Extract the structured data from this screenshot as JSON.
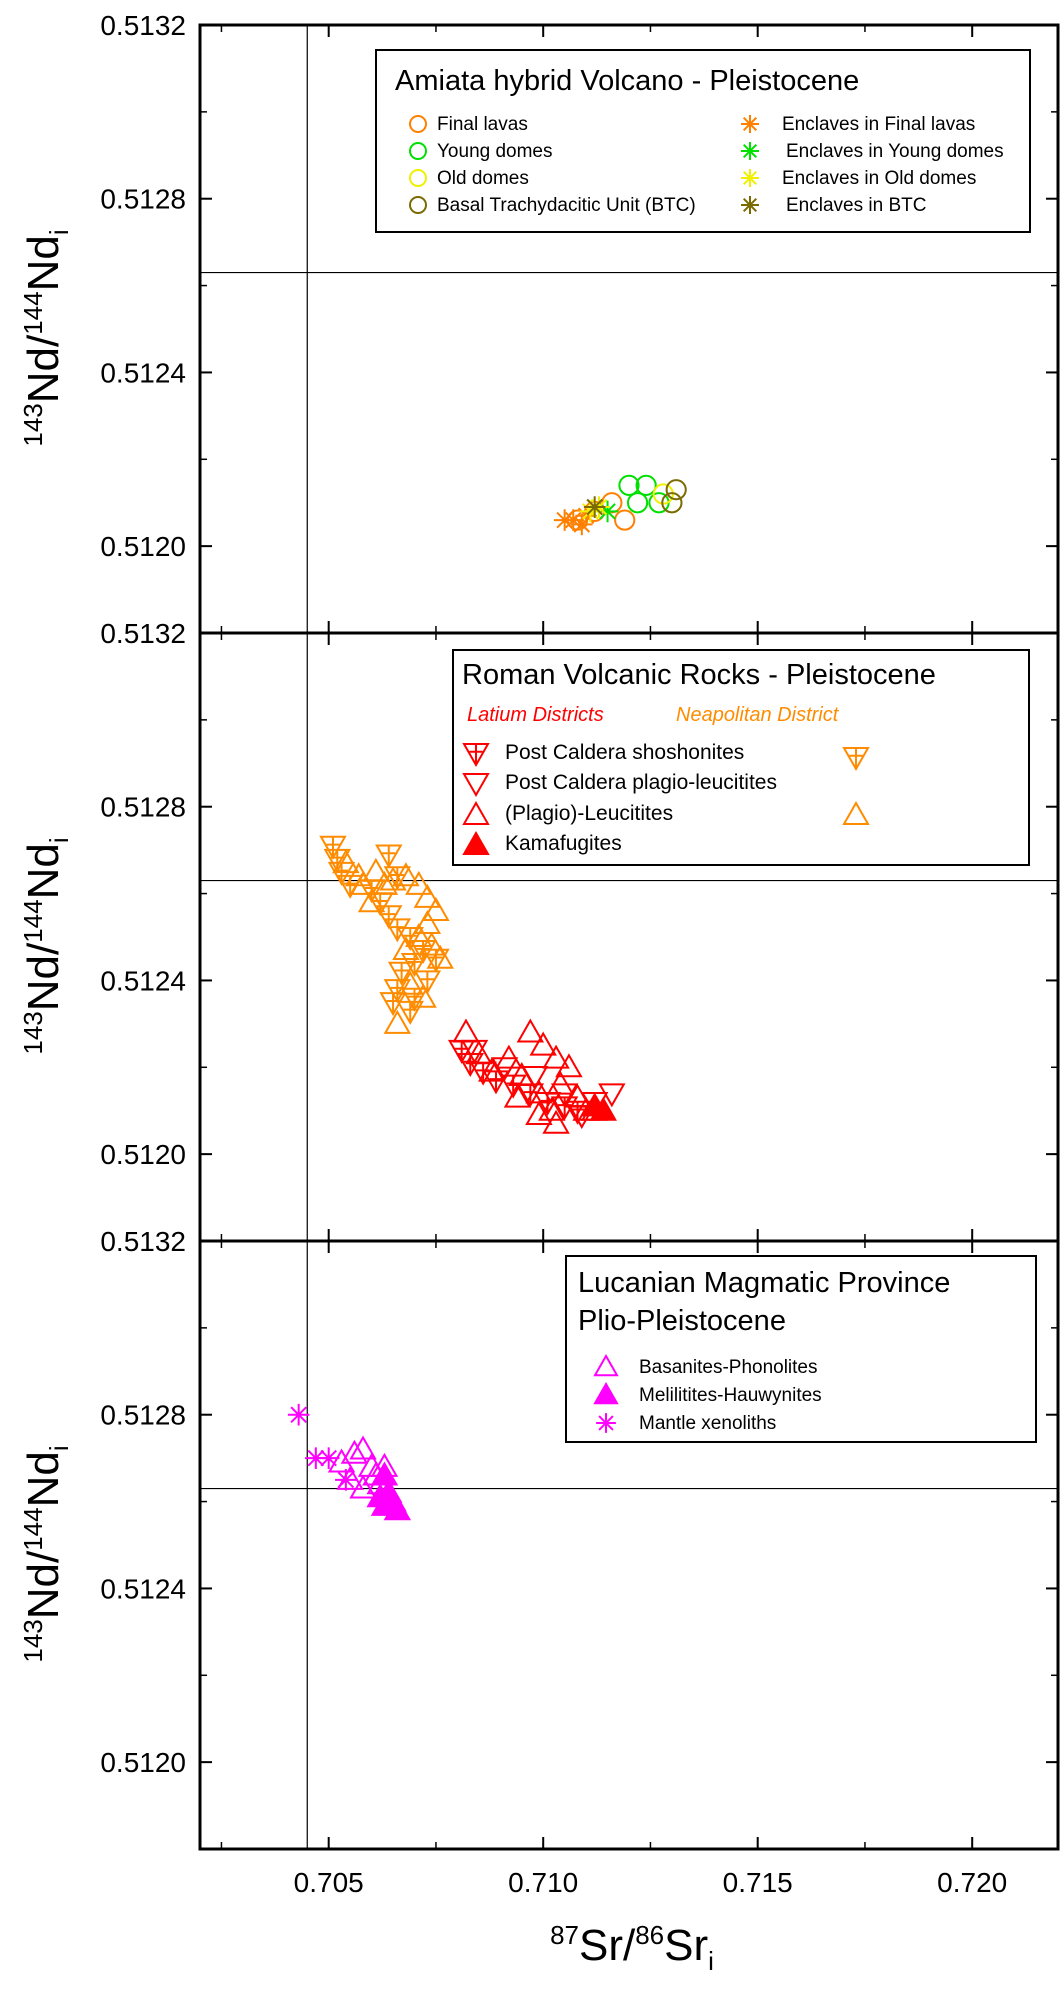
{
  "axes": {
    "x_label_main": "Sr/",
    "x_label_sup1": "87",
    "x_label_sup2": "86",
    "x_label_tail": "Sr",
    "x_label_sub": "i",
    "y_label_sup1": "143",
    "y_label_mid": "Nd/",
    "y_label_sup2": "144",
    "y_label_tail": "Nd",
    "y_label_sub": "i",
    "x_ticks": [
      "0.705",
      "0.710",
      "0.715",
      "0.720"
    ],
    "y_ticks": [
      "0.5120",
      "0.5124",
      "0.5128",
      "0.5132"
    ]
  },
  "legends": [
    {
      "title": "Amiata hybrid Volcano - Pleistocene",
      "left": [
        "Final lavas",
        "Young domes",
        "Old domes",
        "Basal Trachydacitic Unit (BTC)"
      ],
      "right": [
        "Enclaves in Final lavas",
        "Enclaves in Young domes",
        "Enclaves in Old domes",
        "Enclaves in BTC"
      ]
    },
    {
      "title": "Roman Volcanic Rocks - Pleistocene",
      "sub_latium": "Latium Districts",
      "sub_neapolitan": "Neapolitan District",
      "items": [
        "Post Caldera shoshonites",
        "Post Caldera plagio-leucitites",
        "(Plagio)-Leucitites",
        "Kamafugites"
      ]
    },
    {
      "title_line1": "Lucanian Magmatic Province",
      "title_line2": "Plio-Pleistocene",
      "items": [
        "Basanites-Phonolites",
        "Melilitites-Hauwynites",
        "Mantle xenoliths"
      ]
    }
  ],
  "colors": {
    "final_lavas": "#ff8000",
    "young_domes": "#00e000",
    "old_domes": "#f0f000",
    "btc": "#7a6a00",
    "latium": "#ff0000",
    "neapolitan": "#ff8c00",
    "lucanian": "#ff00ff"
  },
  "chart_data": [
    {
      "type": "scatter",
      "title": "Amiata hybrid Volcano - Pleistocene",
      "xlim": [
        0.702,
        0.722
      ],
      "ylim": [
        0.5118,
        0.5132
      ],
      "reference_lines": {
        "x": 0.7045,
        "y": 0.51263
      },
      "series": [
        {
          "name": "Final lavas",
          "marker": "circle-open",
          "color": "#ff8000",
          "points": [
            [
              0.7108,
              0.51206
            ],
            [
              0.7112,
              0.51208
            ],
            [
              0.7116,
              0.5121
            ],
            [
              0.7119,
              0.51206
            ]
          ]
        },
        {
          "name": "Young domes",
          "marker": "circle-open",
          "color": "#00e000",
          "points": [
            [
              0.712,
              0.51214
            ],
            [
              0.7124,
              0.51214
            ],
            [
              0.7122,
              0.5121
            ],
            [
              0.7127,
              0.5121
            ]
          ]
        },
        {
          "name": "Old domes",
          "marker": "circle-open",
          "color": "#f0f000",
          "points": [
            [
              0.7128,
              0.51212
            ]
          ]
        },
        {
          "name": "Basal Trachydacitic Unit (BTC)",
          "marker": "circle-open",
          "color": "#7a6a00",
          "points": [
            [
              0.7131,
              0.51213
            ],
            [
              0.713,
              0.5121
            ]
          ]
        },
        {
          "name": "Enclaves in Final lavas",
          "marker": "asterisk",
          "color": "#ff8000",
          "points": [
            [
              0.7107,
              0.51206
            ],
            [
              0.7109,
              0.51205
            ],
            [
              0.711,
              0.51207
            ],
            [
              0.7105,
              0.51206
            ]
          ]
        },
        {
          "name": "Enclaves in Young domes",
          "marker": "asterisk",
          "color": "#00e000",
          "points": [
            [
              0.7115,
              0.51208
            ]
          ]
        },
        {
          "name": "Enclaves in Old domes",
          "marker": "asterisk",
          "color": "#f0f000",
          "points": [
            [
              0.7111,
              0.51208
            ],
            [
              0.7113,
              0.51209
            ]
          ]
        },
        {
          "name": "Enclaves in BTC",
          "marker": "asterisk",
          "color": "#7a6a00",
          "points": [
            [
              0.7112,
              0.51209
            ]
          ]
        }
      ]
    },
    {
      "type": "scatter",
      "title": "Roman Volcanic Rocks - Pleistocene",
      "xlim": [
        0.702,
        0.722
      ],
      "ylim": [
        0.5118,
        0.5132
      ],
      "reference_lines": {
        "x": 0.7045,
        "y": 0.51263
      },
      "series": [
        {
          "name": "Post Caldera shoshonites",
          "group": "Neapolitan District",
          "marker": "triangle-down-cross",
          "color": "#ff8c00",
          "points": [
            [
              0.7051,
              0.51271
            ],
            [
              0.7052,
              0.51268
            ],
            [
              0.7053,
              0.51265
            ],
            [
              0.7055,
              0.51262
            ],
            [
              0.706,
              0.51261
            ],
            [
              0.7062,
              0.51258
            ],
            [
              0.7064,
              0.51255
            ],
            [
              0.7066,
              0.51252
            ],
            [
              0.7069,
              0.5125
            ],
            [
              0.7072,
              0.51247
            ],
            [
              0.707,
              0.51244
            ],
            [
              0.7067,
              0.51242
            ],
            [
              0.7066,
              0.51238
            ],
            [
              0.7065,
              0.51235
            ],
            [
              0.7069,
              0.51233
            ],
            [
              0.7073,
              0.5124
            ],
            [
              0.7075,
              0.51245
            ],
            [
              0.7064,
              0.51269
            ],
            [
              0.7066,
              0.51264
            ],
            [
              0.707,
              0.51236
            ]
          ]
        },
        {
          "name": "(Plagio)-Leucitites",
          "group": "Neapolitan District",
          "marker": "triangle-up",
          "color": "#ff8c00",
          "points": [
            [
              0.7054,
              0.51267
            ],
            [
              0.7057,
              0.51264
            ],
            [
              0.7061,
              0.51265
            ],
            [
              0.7063,
              0.51262
            ],
            [
              0.7065,
              0.51263
            ],
            [
              0.7068,
              0.51264
            ],
            [
              0.7071,
              0.51262
            ],
            [
              0.7073,
              0.51259
            ],
            [
              0.7075,
              0.51256
            ],
            [
              0.7073,
              0.51253
            ],
            [
              0.7071,
              0.5125
            ],
            [
              0.7074,
              0.51248
            ],
            [
              0.7076,
              0.51245
            ],
            [
              0.7068,
              0.51247
            ],
            [
              0.7069,
              0.51239
            ],
            [
              0.7072,
              0.51236
            ],
            [
              0.7066,
              0.5123
            ],
            [
              0.706,
              0.51258
            ],
            [
              0.7058,
              0.51262
            ]
          ]
        },
        {
          "name": "Post Caldera shoshonites",
          "group": "Latium Districts",
          "marker": "triangle-down-cross",
          "color": "#ff0000",
          "points": [
            [
              0.7081,
              0.51224
            ],
            [
              0.7083,
              0.51221
            ],
            [
              0.7086,
              0.51219
            ],
            [
              0.7089,
              0.51217
            ],
            [
              0.7093,
              0.51216
            ],
            [
              0.7097,
              0.51214
            ],
            [
              0.7101,
              0.51212
            ],
            [
              0.7105,
              0.51211
            ],
            [
              0.7108,
              0.5121
            ]
          ]
        },
        {
          "name": "Post Caldera plagio-leucitites",
          "group": "Latium Districts",
          "marker": "triangle-down",
          "color": "#ff0000",
          "points": [
            [
              0.7084,
              0.51224
            ],
            [
              0.7091,
              0.5122
            ],
            [
              0.7098,
              0.51218
            ],
            [
              0.7105,
              0.51214
            ],
            [
              0.7112,
              0.51212
            ],
            [
              0.7116,
              0.51214
            ],
            [
              0.7109,
              0.51209
            ]
          ]
        },
        {
          "name": "(Plagio)-Leucitites",
          "group": "Latium Districts",
          "marker": "triangle-up",
          "color": "#ff0000",
          "points": [
            [
              0.7082,
              0.51228
            ],
            [
              0.7085,
              0.51223
            ],
            [
              0.7088,
              0.51219
            ],
            [
              0.7092,
              0.51222
            ],
            [
              0.7095,
              0.51218
            ],
            [
              0.7097,
              0.51228
            ],
            [
              0.71,
              0.51225
            ],
            [
              0.7103,
              0.51222
            ],
            [
              0.7099,
              0.51214
            ],
            [
              0.7102,
              0.5121
            ],
            [
              0.7104,
              0.51216
            ],
            [
              0.7106,
              0.5122
            ],
            [
              0.7108,
              0.51213
            ],
            [
              0.711,
              0.5121
            ],
            [
              0.7103,
              0.51207
            ],
            [
              0.7099,
              0.51209
            ],
            [
              0.7112,
              0.5121
            ],
            [
              0.7094,
              0.51213
            ]
          ]
        },
        {
          "name": "Kamafugites",
          "group": "Latium Districts",
          "marker": "triangle-up-filled",
          "color": "#ff0000",
          "points": [
            [
              0.7112,
              0.51211
            ],
            [
              0.7114,
              0.5121
            ]
          ]
        }
      ]
    },
    {
      "type": "scatter",
      "title": "Lucanian Magmatic Province Plio-Pleistocene",
      "xlim": [
        0.702,
        0.722
      ],
      "ylim": [
        0.5118,
        0.5132
      ],
      "reference_lines": {
        "x": 0.7045,
        "y": 0.51263
      },
      "series": [
        {
          "name": "Basanites-Phonolites",
          "marker": "triangle-up",
          "color": "#ff00ff",
          "points": [
            [
              0.7053,
              0.51269
            ],
            [
              0.7056,
              0.51271
            ],
            [
              0.7058,
              0.51272
            ],
            [
              0.706,
              0.51268
            ],
            [
              0.7061,
              0.51266
            ],
            [
              0.7063,
              0.51268
            ],
            [
              0.7058,
              0.51263
            ],
            [
              0.7055,
              0.51265
            ],
            [
              0.7062,
              0.51264
            ]
          ]
        },
        {
          "name": "Melilitites-Hauwynites",
          "marker": "triangle-up-filled",
          "color": "#ff00ff",
          "points": [
            [
              0.7063,
              0.51266
            ],
            [
              0.7064,
              0.51262
            ],
            [
              0.7065,
              0.5126
            ],
            [
              0.7063,
              0.51259
            ],
            [
              0.7066,
              0.51258
            ],
            [
              0.7062,
              0.51261
            ]
          ]
        },
        {
          "name": "Mantle xenoliths",
          "marker": "asterisk",
          "color": "#ff00ff",
          "points": [
            [
              0.7043,
              0.5128
            ],
            [
              0.7047,
              0.5127
            ],
            [
              0.705,
              0.5127
            ],
            [
              0.7054,
              0.51265
            ]
          ]
        }
      ]
    }
  ]
}
